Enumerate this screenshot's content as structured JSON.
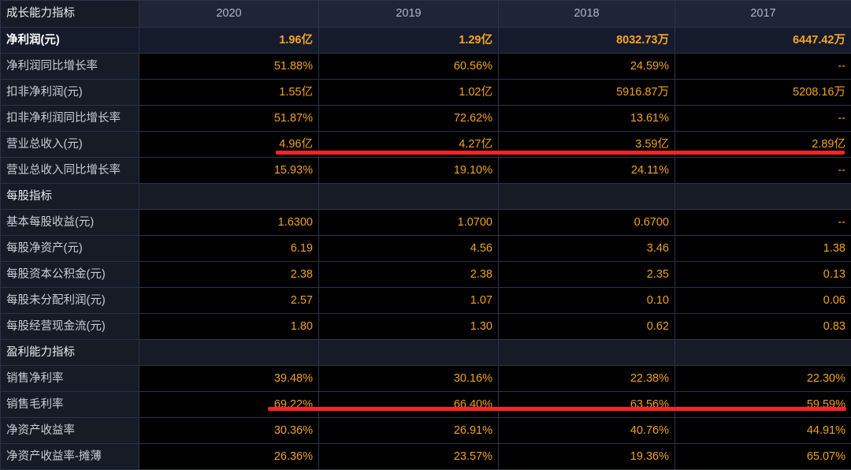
{
  "header": {
    "title": "成长能力指标",
    "years": [
      "2020",
      "2019",
      "2018",
      "2017"
    ]
  },
  "rows": [
    {
      "label": "净利润(元)",
      "values": [
        "1.96亿",
        "1.29亿",
        "8032.73万",
        "6447.42万"
      ],
      "highlight": true
    },
    {
      "label": "净利润同比增长率",
      "values": [
        "51.88%",
        "60.56%",
        "24.59%",
        "--"
      ]
    },
    {
      "label": "扣非净利润(元)",
      "values": [
        "1.55亿",
        "1.02亿",
        "5916.87万",
        "5208.16万"
      ]
    },
    {
      "label": "扣非净利润同比增长率",
      "values": [
        "51.87%",
        "72.62%",
        "13.61%",
        "--"
      ]
    },
    {
      "label": "营业总收入(元)",
      "values": [
        "4.96亿",
        "4.27亿",
        "3.59亿",
        "2.89亿"
      ],
      "marked": true
    },
    {
      "label": "营业总收入同比增长率",
      "values": [
        "15.93%",
        "19.10%",
        "24.11%",
        "--"
      ]
    },
    {
      "label": "每股指标",
      "section": true
    },
    {
      "label": "基本每股收益(元)",
      "values": [
        "1.6300",
        "1.0700",
        "0.6700",
        "--"
      ]
    },
    {
      "label": "每股净资产(元)",
      "values": [
        "6.19",
        "4.56",
        "3.46",
        "1.38"
      ]
    },
    {
      "label": "每股资本公积金(元)",
      "values": [
        "2.38",
        "2.38",
        "2.35",
        "0.13"
      ]
    },
    {
      "label": "每股未分配利润(元)",
      "values": [
        "2.57",
        "1.07",
        "0.10",
        "0.06"
      ]
    },
    {
      "label": "每股经营现金流(元)",
      "values": [
        "1.80",
        "1.30",
        "0.62",
        "0.83"
      ]
    },
    {
      "label": "盈利能力指标",
      "section": true
    },
    {
      "label": "销售净利率",
      "values": [
        "39.48%",
        "30.16%",
        "22.38%",
        "22.30%"
      ]
    },
    {
      "label": "销售毛利率",
      "values": [
        "69.22%",
        "66.40%",
        "63.56%",
        "59.59%"
      ],
      "marked": true
    },
    {
      "label": "净资产收益率",
      "values": [
        "30.36%",
        "26.91%",
        "40.76%",
        "44.91%"
      ]
    },
    {
      "label": "净资产收益率-摊薄",
      "values": [
        "26.36%",
        "23.57%",
        "19.36%",
        "65.07%"
      ]
    }
  ],
  "colors": {
    "background": "#000000",
    "value_text": "#f2a21a",
    "annotation_mark": "#ff2424",
    "grid": "#2a3448"
  }
}
